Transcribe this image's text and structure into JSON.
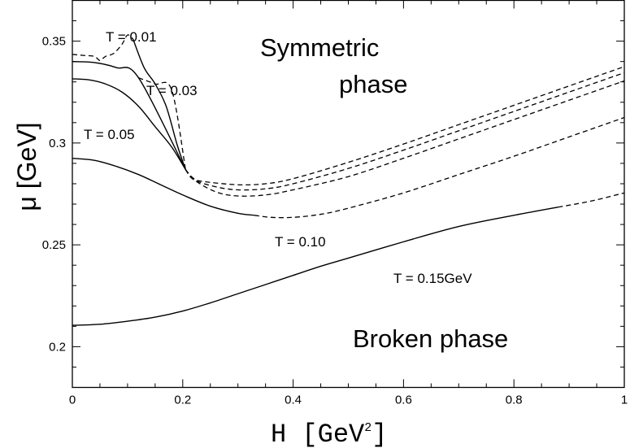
{
  "chart_data": {
    "type": "line",
    "xlabel": "H [GeV",
    "xlabel_sup": "2",
    "xlabel_close": "]",
    "ylabel": "μ [GeV]",
    "xlim": [
      0,
      1
    ],
    "ylim": [
      0.18,
      0.37
    ],
    "xticks": [
      0,
      0.2,
      0.4,
      0.6,
      0.8,
      1
    ],
    "xtick_labels": [
      "0",
      "0.2",
      "0.4",
      "0.6",
      "0.8",
      "1"
    ],
    "yticks": [
      0.2,
      0.25,
      0.3,
      0.35
    ],
    "ytick_labels": [
      "0.2",
      "0.25",
      "0.3",
      "0.35"
    ],
    "grid": false,
    "series": [
      {
        "name": "T = 0.01",
        "solid": [
          [
            0.11,
            0.351
          ],
          [
            0.13,
            0.337
          ],
          [
            0.15,
            0.329
          ],
          [
            0.17,
            0.318
          ],
          [
            0.19,
            0.299
          ],
          [
            0.205,
            0.287
          ]
        ],
        "dashed": [
          [
            0,
            0.3435
          ],
          [
            0.02,
            0.343
          ],
          [
            0.04,
            0.3425
          ],
          [
            0.05,
            0.3405
          ],
          [
            0.06,
            0.3425
          ],
          [
            0.075,
            0.344
          ],
          [
            0.09,
            0.3485
          ],
          [
            0.1,
            0.353
          ],
          [
            0.11,
            0.351
          ]
        ],
        "dashed_tail": [
          [
            0.205,
            0.287
          ],
          [
            0.22,
            0.2825
          ],
          [
            0.24,
            0.281
          ],
          [
            0.3,
            0.2795
          ],
          [
            0.35,
            0.28
          ],
          [
            0.4,
            0.2825
          ],
          [
            0.5,
            0.2905
          ],
          [
            0.6,
            0.2995
          ],
          [
            0.7,
            0.309
          ],
          [
            0.8,
            0.3185
          ],
          [
            0.9,
            0.328
          ],
          [
            1.0,
            0.3375
          ]
        ]
      },
      {
        "name": "T = 0.03",
        "solid": [
          [
            0.0,
            0.34
          ],
          [
            0.04,
            0.3395
          ],
          [
            0.08,
            0.337
          ],
          [
            0.12,
            0.332
          ],
          [
            0.205,
            0.287
          ]
        ],
        "dashed": [
          [
            0.12,
            0.332
          ],
          [
            0.15,
            0.329
          ],
          [
            0.18,
            0.326
          ],
          [
            0.205,
            0.287
          ]
        ],
        "dashed_tail": [
          [
            0.205,
            0.287
          ],
          [
            0.22,
            0.282
          ],
          [
            0.26,
            0.2785
          ],
          [
            0.3,
            0.277
          ],
          [
            0.35,
            0.2775
          ],
          [
            0.4,
            0.28
          ],
          [
            0.5,
            0.2875
          ],
          [
            0.6,
            0.2965
          ],
          [
            0.7,
            0.306
          ],
          [
            0.8,
            0.3155
          ],
          [
            0.9,
            0.325
          ],
          [
            1.0,
            0.3345
          ]
        ]
      },
      {
        "name": "T = 0.05",
        "solid": [
          [
            0.0,
            0.3315
          ],
          [
            0.03,
            0.331
          ],
          [
            0.06,
            0.329
          ],
          [
            0.09,
            0.325
          ],
          [
            0.12,
            0.318
          ],
          [
            0.15,
            0.308
          ],
          [
            0.18,
            0.298
          ],
          [
            0.205,
            0.287
          ]
        ],
        "dashed_tail": [
          [
            0.205,
            0.287
          ],
          [
            0.22,
            0.282
          ],
          [
            0.26,
            0.276
          ],
          [
            0.3,
            0.274
          ],
          [
            0.35,
            0.2745
          ],
          [
            0.4,
            0.277
          ],
          [
            0.5,
            0.2835
          ],
          [
            0.6,
            0.2925
          ],
          [
            0.7,
            0.302
          ],
          [
            0.8,
            0.3115
          ],
          [
            0.9,
            0.321
          ],
          [
            1.0,
            0.3305
          ]
        ]
      },
      {
        "name": "T = 0.10",
        "solid": [
          [
            0.0,
            0.2925
          ],
          [
            0.04,
            0.2915
          ],
          [
            0.08,
            0.2885
          ],
          [
            0.12,
            0.2845
          ],
          [
            0.16,
            0.2795
          ],
          [
            0.2,
            0.2745
          ],
          [
            0.25,
            0.269
          ],
          [
            0.3,
            0.2655
          ],
          [
            0.33,
            0.2645
          ]
        ],
        "dashed": [
          [
            0.33,
            0.2645
          ],
          [
            0.36,
            0.2635
          ],
          [
            0.4,
            0.2635
          ],
          [
            0.45,
            0.265
          ],
          [
            0.5,
            0.268
          ],
          [
            0.6,
            0.2755
          ],
          [
            0.7,
            0.2845
          ],
          [
            0.8,
            0.2935
          ],
          [
            0.9,
            0.303
          ],
          [
            1.0,
            0.3125
          ]
        ]
      },
      {
        "name": "T = 0.15GeV",
        "solid": [
          [
            0.0,
            0.2105
          ],
          [
            0.05,
            0.211
          ],
          [
            0.1,
            0.2125
          ],
          [
            0.15,
            0.2145
          ],
          [
            0.2,
            0.2175
          ],
          [
            0.25,
            0.2215
          ],
          [
            0.3,
            0.226
          ],
          [
            0.35,
            0.2305
          ],
          [
            0.4,
            0.235
          ],
          [
            0.45,
            0.2395
          ],
          [
            0.5,
            0.2435
          ],
          [
            0.6,
            0.2515
          ],
          [
            0.7,
            0.259
          ],
          [
            0.8,
            0.2645
          ],
          [
            0.88,
            0.2685
          ]
        ],
        "dashed": [
          [
            0.88,
            0.2685
          ],
          [
            0.94,
            0.2715
          ],
          [
            1.0,
            0.2755
          ]
        ]
      }
    ],
    "curve_labels": [
      "T = 0.01",
      "T = 0.03",
      "T = 0.05",
      "T = 0.10",
      "T = 0.15GeV"
    ],
    "annotations": [
      "Symmetric",
      "phase",
      "Broken phase"
    ]
  }
}
